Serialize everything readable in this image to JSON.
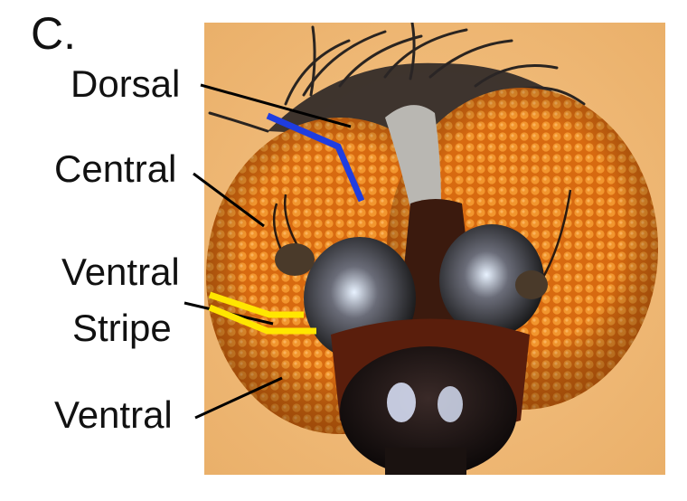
{
  "panel_label": "C.",
  "labels": {
    "dorsal": "Dorsal",
    "central": "Central",
    "ventral_stripe_line1": "Ventral",
    "ventral_stripe_line2": "Stripe",
    "ventral": "Ventral"
  },
  "colors": {
    "background": "#f2b772",
    "eye": "#e07818",
    "dorsal_marker": "#1f3de0",
    "ventral_stripe_marker": "#ffe600",
    "pointer_lines": "#000000"
  }
}
